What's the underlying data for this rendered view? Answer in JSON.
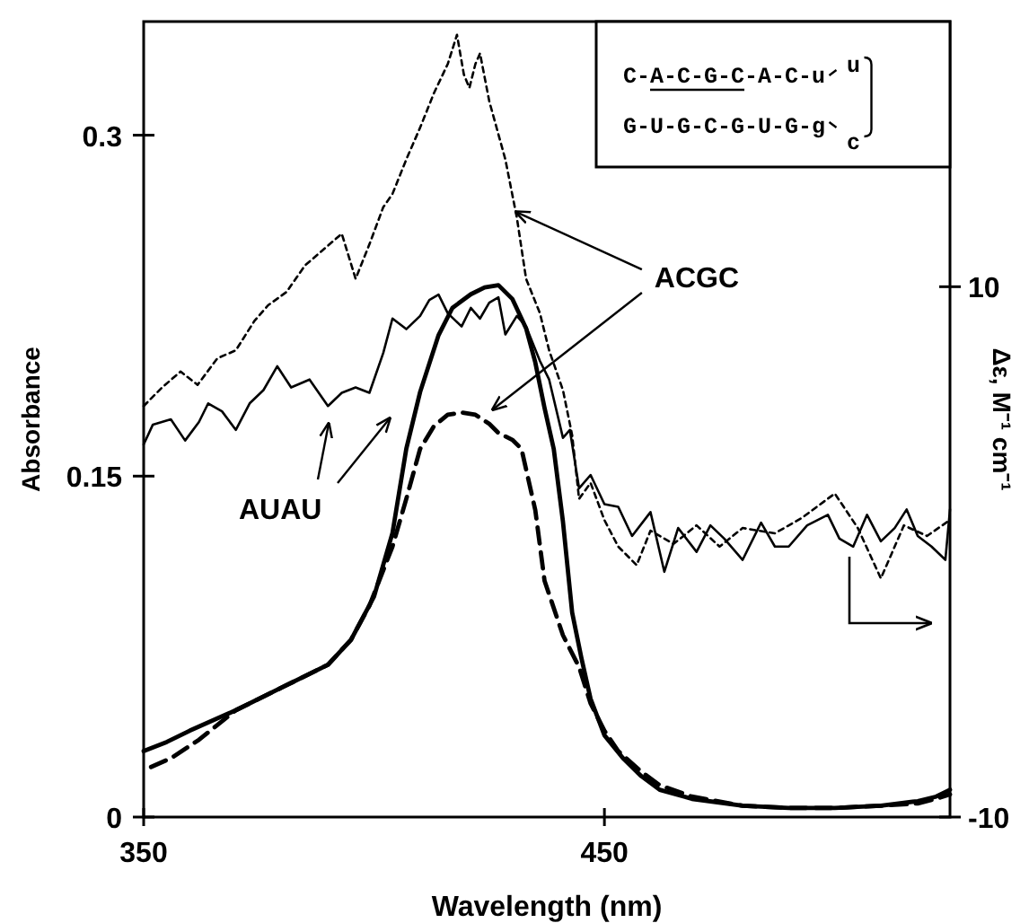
{
  "chart_data": {
    "type": "line",
    "xlabel": "Wavelength (nm)",
    "ylabel": "Absorbance",
    "y2label": "Δε, M⁻¹ cm⁻¹",
    "xlim": [
      350,
      525
    ],
    "xticks": [
      350,
      450
    ],
    "ylim": [
      0,
      0.35
    ],
    "yticks": [
      0,
      0.15,
      0.3
    ],
    "y2lim": [
      -10,
      20
    ],
    "y2ticks": [
      -10,
      10
    ],
    "grid": false,
    "marker": "none",
    "series": [
      {
        "color": "#000000",
        "line_style": "solid",
        "x": [
          350,
          355,
          360,
          370,
          380,
          390,
          395,
          400,
          404,
          407,
          410,
          414,
          417,
          421,
          424,
          427,
          430,
          433,
          435,
          437,
          439,
          441,
          443,
          445,
          447,
          450,
          454,
          458,
          462,
          469,
          480,
          490,
          500,
          510,
          518,
          522,
          525
        ],
        "values": [
          0.029,
          0.033,
          0.038,
          0.047,
          0.057,
          0.067,
          0.078,
          0.097,
          0.125,
          0.162,
          0.187,
          0.212,
          0.224,
          0.23,
          0.233,
          0.234,
          0.228,
          0.215,
          0.2,
          0.18,
          0.162,
          0.13,
          0.09,
          0.07,
          0.052,
          0.036,
          0.026,
          0.018,
          0.012,
          0.008,
          0.005,
          0.004,
          0.004,
          0.005,
          0.007,
          0.009,
          0.012
        ]
      },
      {
        "color": "#000000",
        "line_style": "dashed",
        "x": [
          351.6,
          356,
          362,
          370,
          380,
          390,
          395,
          399,
          404,
          407,
          410,
          413,
          416,
          419,
          422,
          425,
          427,
          430,
          432,
          435,
          437,
          441,
          444.5,
          447,
          450,
          453,
          458,
          462,
          469,
          480,
          490,
          500,
          510,
          518,
          522,
          525
        ],
        "values": [
          0.022,
          0.026,
          0.034,
          0.047,
          0.057,
          0.067,
          0.078,
          0.093,
          0.119,
          0.14,
          0.162,
          0.172,
          0.177,
          0.178,
          0.177,
          0.173,
          0.169,
          0.166,
          0.162,
          0.135,
          0.104,
          0.08,
          0.066,
          0.05,
          0.038,
          0.029,
          0.02,
          0.014,
          0.009,
          0.005,
          0.004,
          0.004,
          0.005,
          0.006,
          0.008,
          0.01
        ]
      },
      {
        "color": "#000000",
        "line_style": "solid",
        "axis": "y2",
        "x": [
          350,
          352,
          355.9,
          359,
          362,
          364,
          367,
          370,
          373,
          376,
          379,
          382,
          386,
          390,
          393,
          396,
          399,
          402,
          404,
          407,
          410,
          412,
          414,
          416,
          419,
          421,
          423,
          425,
          427,
          428.5,
          431,
          433,
          436,
          438,
          441,
          442.5,
          444.5,
          447,
          450,
          453,
          456,
          460,
          463,
          466,
          470,
          473,
          476,
          480,
          484,
          487,
          490,
          494,
          498.5,
          501,
          504,
          507,
          510,
          513,
          515.6,
          518,
          521,
          524,
          525
        ],
        "values": [
          4.05,
          4.8,
          5.0,
          4.2,
          4.9,
          5.6,
          5.3,
          4.6,
          5.6,
          6.1,
          7.0,
          6.2,
          6.5,
          5.5,
          6.0,
          6.2,
          6.0,
          7.5,
          8.8,
          8.4,
          8.9,
          9.5,
          9.7,
          9.0,
          8.5,
          9.2,
          8.8,
          9.4,
          9.6,
          8.2,
          8.9,
          8.5,
          7.2,
          6.5,
          4.3,
          4.6,
          2.4,
          2.9,
          1.8,
          1.7,
          0.6,
          1.5,
          -0.75,
          0.9,
          0.0,
          1.0,
          0.5,
          -0.3,
          1.1,
          0.2,
          0.2,
          1.0,
          1.4,
          0.5,
          0.2,
          1.4,
          0.4,
          0.9,
          1.6,
          0.6,
          0.2,
          -0.3,
          1.6
        ]
      },
      {
        "color": "#000000",
        "line_style": "dotted",
        "axis": "y2",
        "x": [
          350,
          354,
          358,
          361.7,
          366,
          370,
          374,
          377,
          381,
          385,
          389,
          393,
          396,
          399,
          402,
          404,
          407,
          410,
          413,
          416,
          418,
          419.5,
          420.7,
          422,
          423,
          425,
          428.5,
          431,
          433,
          436,
          438,
          441,
          443,
          444.5,
          447,
          450,
          453,
          457,
          460,
          465,
          470,
          475,
          480,
          487,
          493,
          500,
          505,
          510,
          515,
          520,
          525
        ],
        "values": [
          5.5,
          6.2,
          6.8,
          6.3,
          7.3,
          7.6,
          8.7,
          9.3,
          9.8,
          10.8,
          11.4,
          12.0,
          10.3,
          11.6,
          13.0,
          13.5,
          14.8,
          16.0,
          17.3,
          18.4,
          19.5,
          18.0,
          17.5,
          18.4,
          18.8,
          17.0,
          14.8,
          12.6,
          10.3,
          9.0,
          7.6,
          6.1,
          4.4,
          2.0,
          2.6,
          1.2,
          0.2,
          -0.5,
          0.8,
          0.3,
          1.0,
          0.2,
          0.9,
          0.7,
          1.3,
          2.2,
          0.9,
          -1.0,
          1.0,
          0.6,
          1.2
        ]
      }
    ],
    "annotations": [
      {
        "text": "ACGC",
        "x": 425,
        "y": 0.173
      },
      "AUAU",
      "C-A-C-G-C-A-C-u",
      "G-U-G-C-G-U-G-g",
      "u",
      "c"
    ]
  }
}
